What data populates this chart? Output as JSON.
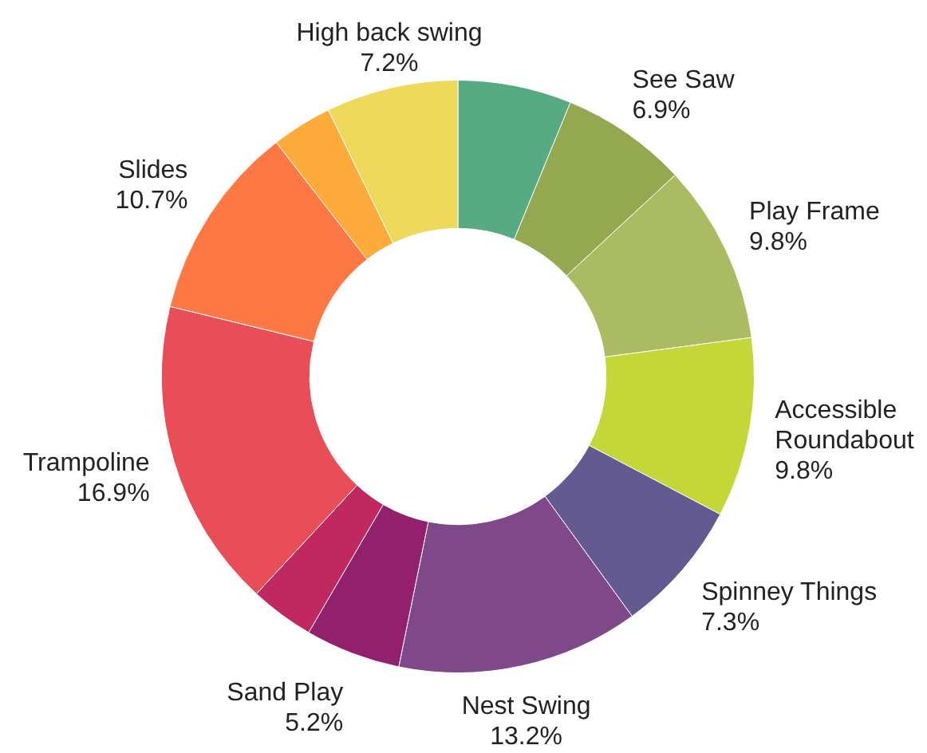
{
  "chart_data": {
    "type": "donut",
    "categories": [
      null,
      "See Saw",
      "Play Frame",
      "Accessible Roundabout",
      "Spinney Things",
      "Nest Swing",
      "Sand Play",
      null,
      "Trampoline",
      "Slides",
      null,
      "High back swing"
    ],
    "values": [
      6.2,
      6.9,
      9.8,
      9.8,
      7.3,
      13.2,
      5.2,
      3.5,
      16.9,
      10.7,
      3.3,
      7.2
    ],
    "value_labels": [
      null,
      "6.9%",
      "9.8%",
      "9.8%",
      "7.3%",
      "13.2%",
      "5.2%",
      null,
      "16.9%",
      "10.7%",
      null,
      "7.2%"
    ],
    "colors": [
      "#56ab83",
      "#94a84f",
      "#abbb62",
      "#c4d638",
      "#645a92",
      "#7f4889",
      "#93206d",
      "#c0285f",
      "#e94e58",
      "#fd7844",
      "#fdab3a",
      "#efd95a"
    ],
    "legend": false
  }
}
